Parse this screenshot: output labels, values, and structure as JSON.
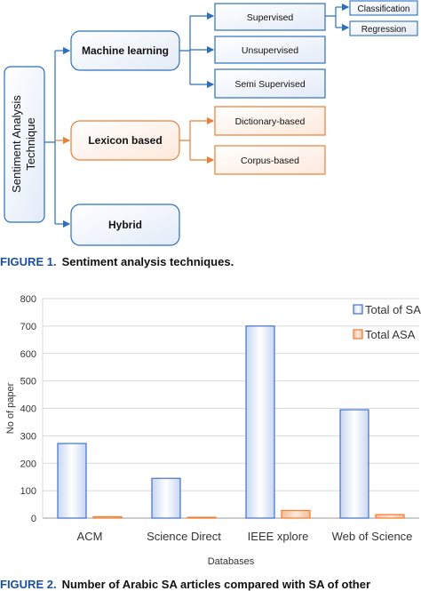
{
  "diagram": {
    "root": "Sentiment Analysis Technique",
    "root_lines": [
      "Sentiment Analysis",
      "Technique"
    ],
    "nodes": {
      "ml": "Machine learning",
      "lex": "Lexicon based",
      "hyb": "Hybrid",
      "sup": "Supervised",
      "unsup": "Unsupervised",
      "semi": "Semi Supervised",
      "dict": "Dictionary-based",
      "corp": "Corpus-based",
      "cls": "Classification",
      "reg": "Regression"
    },
    "colors": {
      "blue": "#2e6fbf",
      "orange": "#e8803a"
    }
  },
  "captions": {
    "fig1_label": "FIGURE 1.",
    "fig1_text": "Sentiment analysis techniques.",
    "fig2_label": "FIGURE 2.",
    "fig2_text": "Number of Arabic SA articles compared with SA of other"
  },
  "chart_data": {
    "type": "bar",
    "categories": [
      "ACM",
      "Science Direct",
      "IEEE xplore",
      "Web of Science"
    ],
    "series": [
      {
        "name": "Total of SA",
        "values": [
          272,
          145,
          700,
          395
        ],
        "color": "#4472c4"
      },
      {
        "name": "Total ASA",
        "values": [
          5,
          3,
          28,
          13
        ],
        "color": "#ed7d31"
      }
    ],
    "xlabel": "Databases",
    "ylabel": "No of paper",
    "ylim": [
      0,
      800
    ],
    "yticks": [
      0,
      100,
      200,
      300,
      400,
      500,
      600,
      700,
      800
    ],
    "grid": true,
    "legend": "top-right"
  }
}
